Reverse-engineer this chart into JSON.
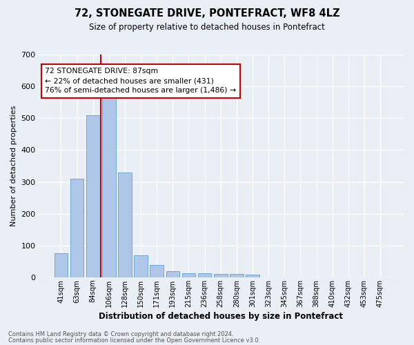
{
  "title": "72, STONEGATE DRIVE, PONTEFRACT, WF8 4LZ",
  "subtitle": "Size of property relative to detached houses in Pontefract",
  "xlabel": "Distribution of detached houses by size in Pontefract",
  "ylabel": "Number of detached properties",
  "footnote1": "Contains HM Land Registry data © Crown copyright and database right 2024.",
  "footnote2": "Contains public sector information licensed under the Open Government Licence v3.0.",
  "bin_labels": [
    "41sqm",
    "63sqm",
    "84sqm",
    "106sqm",
    "128sqm",
    "150sqm",
    "171sqm",
    "193sqm",
    "215sqm",
    "236sqm",
    "258sqm",
    "280sqm",
    "301sqm",
    "323sqm",
    "345sqm",
    "367sqm",
    "388sqm",
    "410sqm",
    "432sqm",
    "453sqm",
    "475sqm"
  ],
  "bar_values": [
    75,
    310,
    510,
    580,
    330,
    70,
    38,
    20,
    12,
    12,
    10,
    10,
    8,
    0,
    0,
    0,
    0,
    0,
    0,
    0,
    0
  ],
  "bar_color": "#aec6e8",
  "bar_edge_color": "#6aaad4",
  "highlight_color": "#cc0000",
  "annotation_text": "72 STONEGATE DRIVE: 87sqm\n← 22% of detached houses are smaller (431)\n76% of semi-detached houses are larger (1,486) →",
  "annotation_box_color": "#ffffff",
  "annotation_box_edge_color": "#cc0000",
  "ylim": [
    0,
    700
  ],
  "yticks": [
    0,
    100,
    200,
    300,
    400,
    500,
    600,
    700
  ],
  "bg_color": "#eaeef5",
  "grid_color": "#ffffff",
  "figsize": [
    6.0,
    5.0
  ],
  "dpi": 100
}
